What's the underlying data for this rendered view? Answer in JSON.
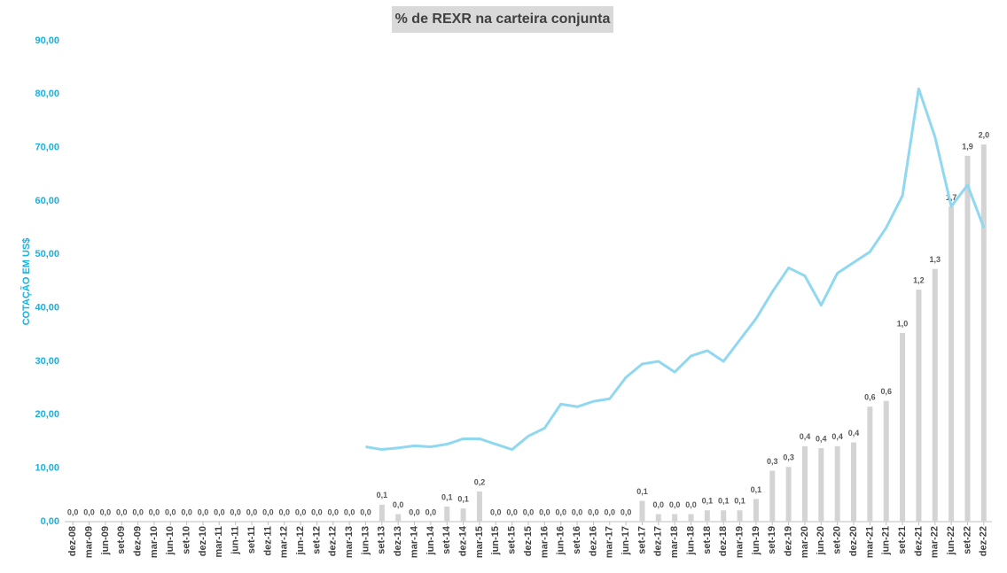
{
  "chart_data": {
    "type": "combo",
    "title": "% de REXR na carteira conjunta",
    "y_label": "COTAÇÃO EM US$",
    "categories": [
      "dez-08",
      "mar-09",
      "jun-09",
      "set-09",
      "dez-09",
      "mar-10",
      "jun-10",
      "set-10",
      "dez-10",
      "mar-11",
      "jun-11",
      "set-11",
      "dez-11",
      "mar-12",
      "jun-12",
      "set-12",
      "dez-12",
      "mar-13",
      "jun-13",
      "set-13",
      "dez-13",
      "mar-14",
      "jun-14",
      "set-14",
      "dez-14",
      "mar-15",
      "jun-15",
      "set-15",
      "dez-15",
      "mar-16",
      "jun-16",
      "set-16",
      "dez-16",
      "mar-17",
      "jun-17",
      "set-17",
      "dez-17",
      "mar-18",
      "jun-18",
      "set-18",
      "dez-18",
      "mar-19",
      "jun-19",
      "set-19",
      "dez-19",
      "mar-20",
      "jun-20",
      "set-20",
      "dez-20",
      "mar-21",
      "jun-21",
      "set-21",
      "dez-21",
      "mar-22",
      "jun-22",
      "set-22",
      "dez-22"
    ],
    "ylim": [
      0,
      90
    ],
    "yticks": [
      {
        "value": 0,
        "label": "0,00"
      },
      {
        "value": 10,
        "label": "10,00"
      },
      {
        "value": 20,
        "label": "20,00"
      },
      {
        "value": 30,
        "label": "30,00"
      },
      {
        "value": 40,
        "label": "40,00"
      },
      {
        "value": 50,
        "label": "50,00"
      },
      {
        "value": 60,
        "label": "60,00"
      },
      {
        "value": 70,
        "label": "70,00"
      },
      {
        "value": 80,
        "label": "80,00"
      },
      {
        "value": 90,
        "label": "90,00"
      }
    ],
    "y2lim": [
      0,
      2.55
    ],
    "series": [
      {
        "type": "bar",
        "axis": "y2",
        "color": "#d4d4d4",
        "values": [
          0,
          0,
          0,
          0,
          0,
          0,
          0,
          0,
          0,
          0,
          0,
          0,
          0,
          0,
          0,
          0,
          0,
          0,
          0,
          0.09,
          0.04,
          0,
          0,
          0.08,
          0.07,
          0.16,
          0,
          0,
          0,
          0,
          0,
          0,
          0,
          0,
          0,
          0.11,
          0.04,
          0.04,
          0.04,
          0.06,
          0.06,
          0.06,
          0.12,
          0.27,
          0.29,
          0.4,
          0.39,
          0.4,
          0.42,
          0.61,
          0.64,
          1.0,
          1.23,
          1.34,
          1.67,
          1.94,
          2.0
        ],
        "value_labels": [
          "0,0",
          "0,0",
          "0,0",
          "0,0",
          "0,0",
          "0,0",
          "0,0",
          "0,0",
          "0,0",
          "0,0",
          "0,0",
          "0,0",
          "0,0",
          "0,0",
          "0,0",
          "0,0",
          "0,0",
          "0,0",
          "0,0",
          "0,1",
          "0,0",
          "0,0",
          "0,0",
          "0,1",
          "0,1",
          "0,2",
          "0,0",
          "0,0",
          "0,0",
          "0,0",
          "0,0",
          "0,0",
          "0,0",
          "0,0",
          "0,0",
          "0,1",
          "0,0",
          "0,0",
          "0,0",
          "0,1",
          "0,1",
          "0,1",
          "0,1",
          "0,3",
          "0,3",
          "0,4",
          "0,4",
          "0,4",
          "0,4",
          "0,6",
          "0,6",
          "1,0",
          "1,2",
          "1,3",
          "1,7",
          "1,9",
          "2,0"
        ]
      },
      {
        "type": "line",
        "axis": "y",
        "color": "#8fd8f0",
        "values": [
          null,
          null,
          null,
          null,
          null,
          null,
          null,
          null,
          null,
          null,
          null,
          null,
          null,
          null,
          null,
          null,
          null,
          null,
          14.0,
          13.5,
          13.8,
          14.2,
          14.0,
          14.5,
          15.5,
          15.5,
          14.5,
          13.5,
          16.0,
          17.5,
          22.0,
          21.5,
          22.5,
          23.0,
          27.0,
          29.5,
          30.0,
          28.0,
          31.0,
          32.0,
          30.0,
          34.0,
          38.0,
          43.0,
          47.5,
          46.0,
          40.5,
          46.5,
          48.5,
          50.5,
          55.0,
          61.0,
          81.0,
          72.0,
          59.0,
          63.0,
          55.0
        ]
      }
    ]
  }
}
